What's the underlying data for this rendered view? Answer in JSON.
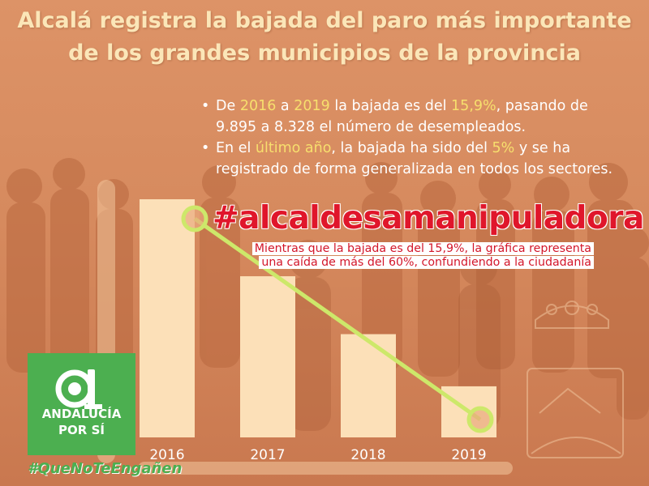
{
  "title_line1": "Alcalá registra la bajada del paro más importante",
  "title_line2": "de los grandes municipios de la provincia",
  "bullet1": {
    "t1": "De ",
    "h1": "2016",
    "t2": " a ",
    "h2": "2019",
    "t3": " la bajada es del ",
    "h3": "15,9%",
    "t4": ", pasando de 9.895 a 8.328 el número de desempleados."
  },
  "bullet2": {
    "t1": "En el ",
    "h1": "último año",
    "t2": ", la bajada ha sido del ",
    "h2": "5%",
    "t3": " y se ha registrado de forma generalizada en todos los sectores."
  },
  "hashtag": "#alcaldesamanipuladora",
  "note_line1": "Mientras que la bajada es del 15,9%, la gráfica representa",
  "note_line2": "una caída de más del 60%, confundiendo a la ciudadanía",
  "logo_line1": "ANDALUCÍA",
  "logo_line2": "POR SÍ",
  "tagline": "#QueNoTeEngañen",
  "colors": {
    "background": "#d98e63",
    "bar": "#fce0b8",
    "trend_line": "#cde86a",
    "hashtag": "#e0162b",
    "logo_green": "#4caf50",
    "highlight": "#f7df6d"
  },
  "chart_data": {
    "type": "bar",
    "categories": [
      "2016",
      "2017",
      "2018",
      "2019"
    ],
    "values": [
      9895,
      9250,
      8765,
      8328
    ],
    "ylim": [
      7900,
      9990
    ],
    "overlay_line": true,
    "grid": false,
    "axis_visible": false
  }
}
